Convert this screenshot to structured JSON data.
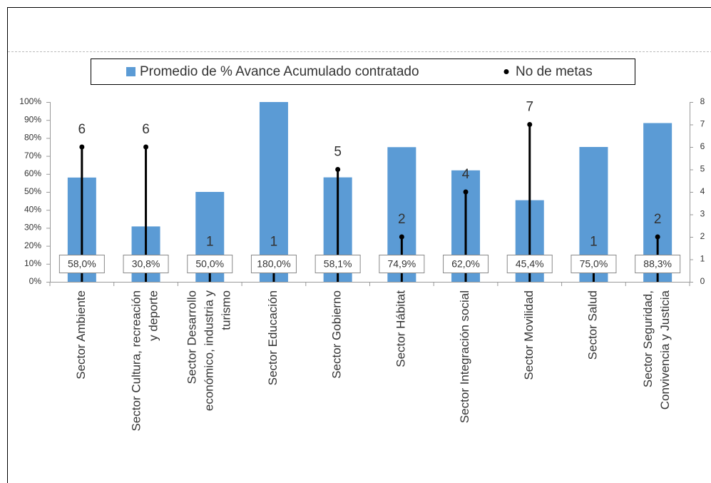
{
  "chart_data": {
    "type": "bar",
    "categories": [
      "Sector Ambiente",
      "Sector Cultura, recreación\ny deporte",
      "Sector Desarrollo\neconómico, industria y\nturismo",
      "Sector Educación",
      "Sector Gobierno",
      "Sector Hábitat",
      "Sector Integración social",
      "Sector Movilidad",
      "Sector Salud",
      "Sector Seguridad,\nConvivencia y Justicia"
    ],
    "series": [
      {
        "name": "Promedio de % Avance Acumulado contratado",
        "color": "#5b9bd5",
        "type": "bar",
        "values": [
          58.0,
          30.8,
          50.0,
          180.0,
          58.1,
          74.9,
          62.0,
          45.4,
          75.0,
          88.3
        ],
        "value_labels": [
          "58,0%",
          "30,8%",
          "50,0%",
          "180,0%",
          "58,1%",
          "74,9%",
          "62,0%",
          "45,4%",
          "75,0%",
          "88,3%"
        ]
      },
      {
        "name": "No de metas",
        "color": "#000000",
        "type": "lollipop",
        "axis": "y2",
        "values": [
          6,
          6,
          1,
          1,
          5,
          2,
          4,
          7,
          1,
          2
        ]
      }
    ],
    "ylim": [
      0,
      100
    ],
    "yticks": [
      {
        "value": 0,
        "label": "0%"
      },
      {
        "value": 10,
        "label": "10%"
      },
      {
        "value": 20,
        "label": "20%"
      },
      {
        "value": 30,
        "label": "30%"
      },
      {
        "value": 40,
        "label": "40%"
      },
      {
        "value": 50,
        "label": "50%"
      },
      {
        "value": 60,
        "label": "60%"
      },
      {
        "value": 70,
        "label": "70%"
      },
      {
        "value": 80,
        "label": "80%"
      },
      {
        "value": 90,
        "label": "90%"
      },
      {
        "value": 100,
        "label": "100%"
      }
    ],
    "y2lim": [
      0,
      8
    ],
    "y2ticks": [
      0,
      1,
      2,
      3,
      4,
      5,
      6,
      7,
      8
    ],
    "legend": "top"
  }
}
